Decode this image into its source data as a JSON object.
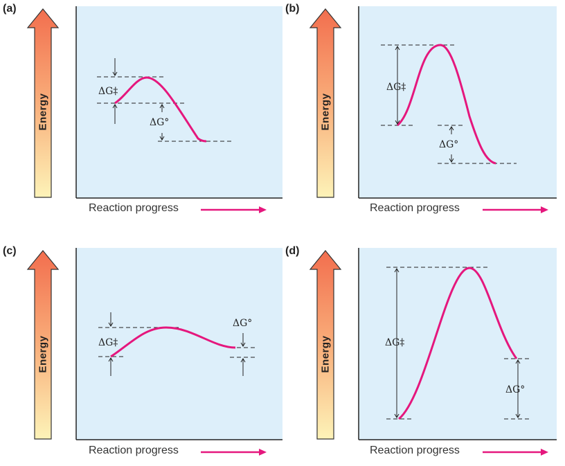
{
  "panels": [
    {
      "letter": "(a)",
      "energy_label": "Energy",
      "xlabel": "Reaction progress",
      "activation_label": "ΔG‡",
      "free_energy_label": "ΔG°"
    },
    {
      "letter": "(b)",
      "energy_label": "Energy",
      "xlabel": "Reaction progress",
      "activation_label": "ΔG‡",
      "free_energy_label": "ΔG°"
    },
    {
      "letter": "(c)",
      "energy_label": "Energy",
      "xlabel": "Reaction progress",
      "activation_label": "ΔG‡",
      "free_energy_label": "ΔG°"
    },
    {
      "letter": "(d)",
      "energy_label": "Energy",
      "xlabel": "Reaction progress",
      "activation_label": "ΔG‡",
      "free_energy_label": "ΔG°"
    }
  ],
  "colors": {
    "plot_background": "#ddeffa",
    "curve": "#e5177d",
    "arrow_top": "#f26e4e",
    "arrow_bottom": "#fdf3b8"
  }
}
